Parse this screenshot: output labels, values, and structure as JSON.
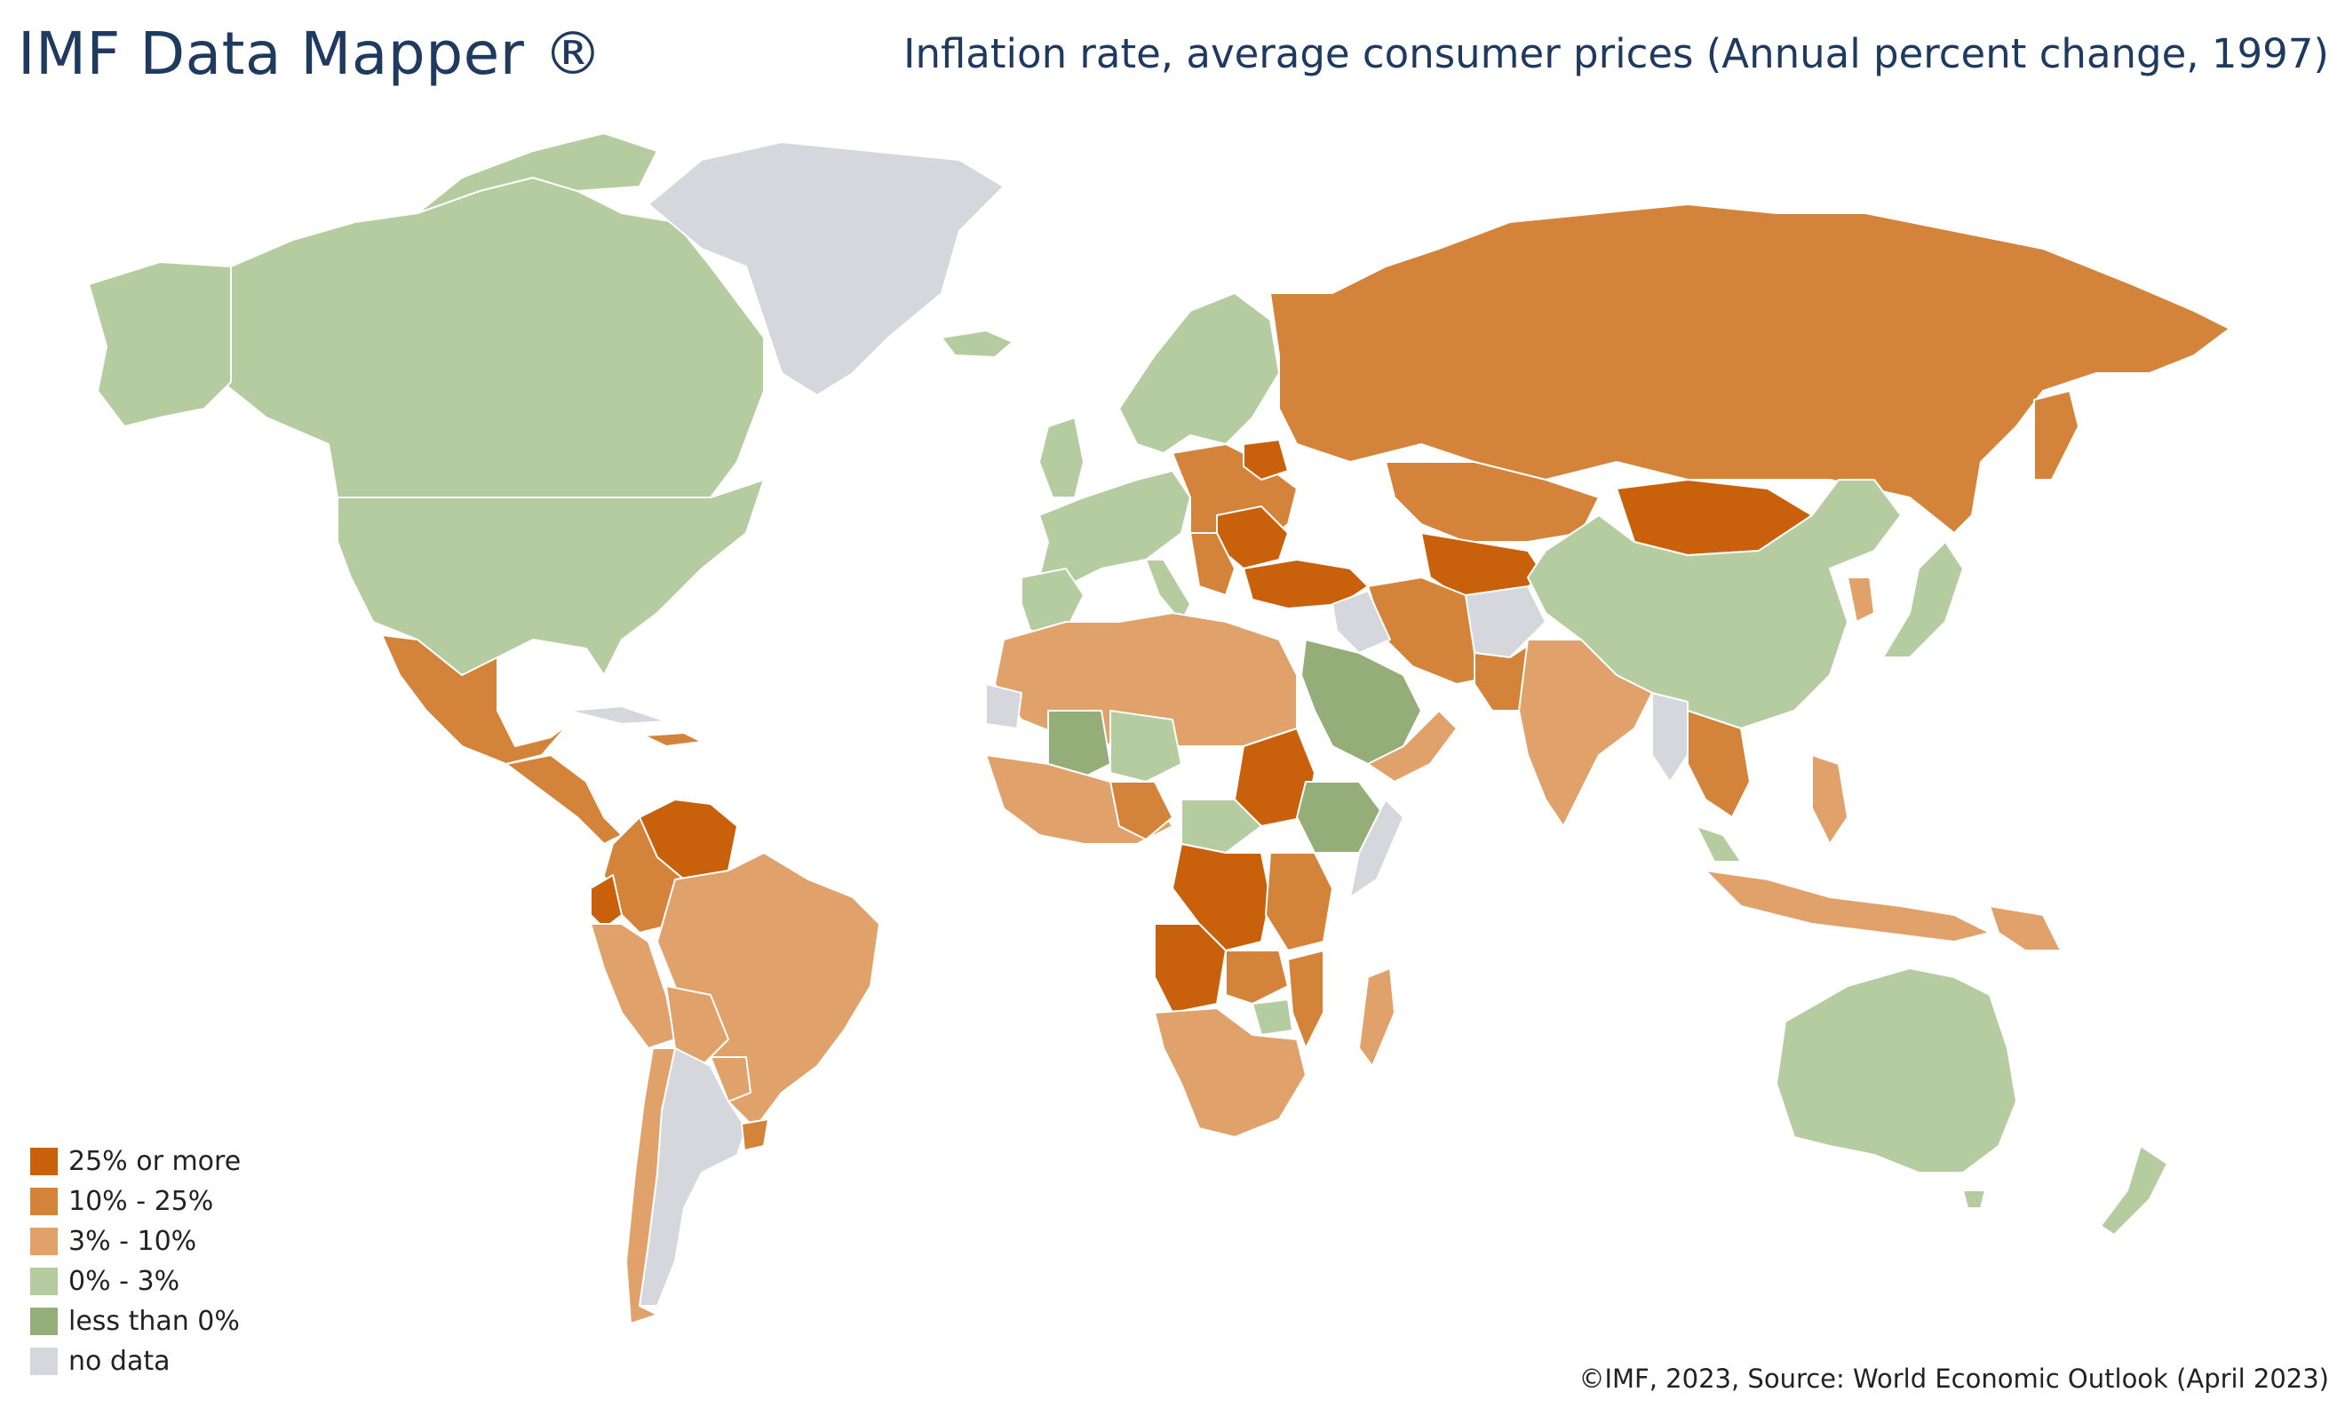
{
  "header": {
    "brand": "IMF Data Mapper ®",
    "title": "Inflation rate, average consumer prices (Annual percent change, 1997)"
  },
  "legend": [
    {
      "label": "25% or more",
      "color": "#c9600c"
    },
    {
      "label": "10% - 25%",
      "color": "#d4843a"
    },
    {
      "label": "3% - 10%",
      "color": "#e0a26a"
    },
    {
      "label": "0% - 3%",
      "color": "#b5cca0"
    },
    {
      "label": "less than 0%",
      "color": "#95ad78"
    },
    {
      "label": "no data",
      "color": "#d6d7dc"
    }
  ],
  "credit": "©IMF, 2023, Source: World Economic Outlook (April 2023)"
}
